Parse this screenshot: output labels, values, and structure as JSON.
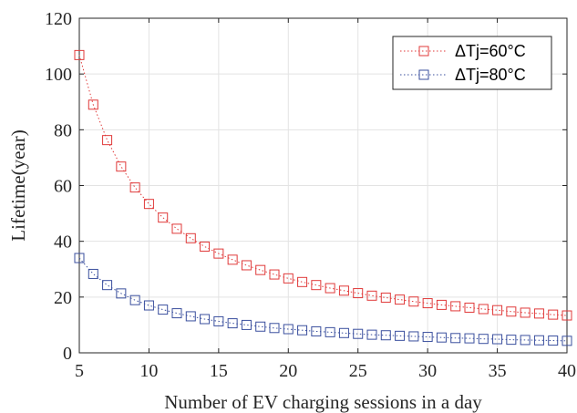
{
  "chart_data": {
    "type": "scatter",
    "title": "",
    "xlabel": "Number of EV charging sessions in a day",
    "ylabel": "Lifetime(year)",
    "xlim": [
      5,
      40
    ],
    "ylim": [
      0,
      120
    ],
    "xticks": [
      5,
      10,
      15,
      20,
      25,
      30,
      35,
      40
    ],
    "yticks": [
      0,
      20,
      40,
      60,
      80,
      100,
      120
    ],
    "grid": true,
    "legend_position": "top-right",
    "series": [
      {
        "name": "ΔTj=60°C",
        "color": "#e03a3a",
        "marker": "square",
        "line_style": "dotted",
        "x": [
          5,
          6,
          7,
          8,
          9,
          10,
          11,
          12,
          13,
          14,
          15,
          16,
          17,
          18,
          19,
          20,
          21,
          22,
          23,
          24,
          25,
          26,
          27,
          28,
          29,
          30,
          31,
          32,
          33,
          34,
          35,
          36,
          37,
          38,
          39,
          40
        ],
        "values": [
          106.8,
          89.0,
          76.3,
          66.8,
          59.3,
          53.4,
          48.5,
          44.5,
          41.1,
          38.1,
          35.6,
          33.4,
          31.4,
          29.7,
          28.1,
          26.7,
          25.4,
          24.3,
          23.2,
          22.3,
          21.4,
          20.5,
          19.8,
          19.1,
          18.4,
          17.8,
          17.2,
          16.7,
          16.2,
          15.7,
          15.3,
          14.8,
          14.4,
          14.1,
          13.7,
          13.4
        ]
      },
      {
        "name": "ΔTj=80°C",
        "color": "#3a4f9e",
        "marker": "square",
        "line_style": "dotted",
        "x": [
          5,
          6,
          7,
          8,
          9,
          10,
          11,
          12,
          13,
          14,
          15,
          16,
          17,
          18,
          19,
          20,
          21,
          22,
          23,
          24,
          25,
          26,
          27,
          28,
          29,
          30,
          31,
          32,
          33,
          34,
          35,
          36,
          37,
          38,
          39,
          40
        ],
        "values": [
          34.0,
          28.3,
          24.3,
          21.3,
          18.9,
          17.0,
          15.5,
          14.2,
          13.1,
          12.1,
          11.3,
          10.6,
          10.0,
          9.4,
          8.9,
          8.5,
          8.1,
          7.7,
          7.4,
          7.1,
          6.8,
          6.5,
          6.3,
          6.1,
          5.9,
          5.7,
          5.5,
          5.3,
          5.2,
          5.0,
          4.9,
          4.7,
          4.6,
          4.5,
          4.4,
          4.3
        ]
      }
    ]
  }
}
